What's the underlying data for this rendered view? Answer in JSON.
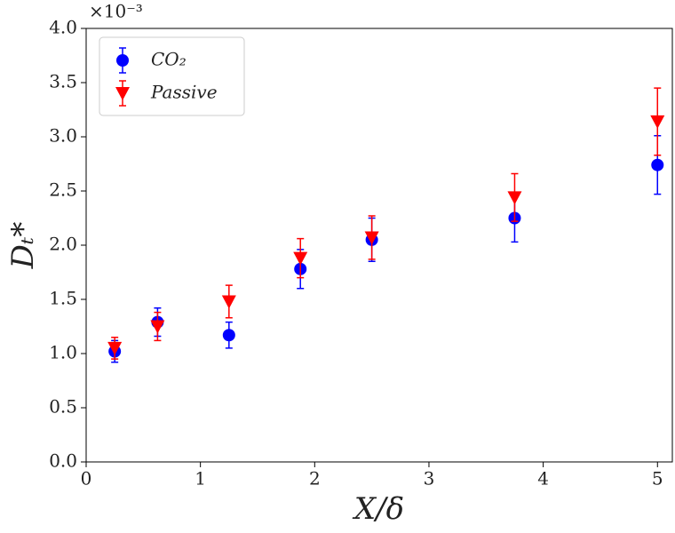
{
  "chart_data": {
    "type": "scatter",
    "xlabel": "X/δ",
    "ylabel": "Dₜ*",
    "y_offset_label": "×10⁻³",
    "x": [
      0.25,
      0.625,
      1.25,
      1.875,
      2.5,
      3.75,
      5
    ],
    "series": [
      {
        "name": "CO₂",
        "color": "#0000ff",
        "marker": "circle",
        "values": [
          1.02,
          1.29,
          1.17,
          1.78,
          2.05,
          2.25,
          2.74
        ],
        "errors": [
          0.1,
          0.13,
          0.12,
          0.18,
          0.2,
          0.22,
          0.27
        ]
      },
      {
        "name": "Passive",
        "color": "#ff0000",
        "marker": "triangle-down",
        "values": [
          1.05,
          1.25,
          1.48,
          1.88,
          2.07,
          2.44,
          3.14
        ],
        "errors": [
          0.1,
          0.13,
          0.15,
          0.18,
          0.2,
          0.22,
          0.31
        ]
      }
    ],
    "xlim": [
      0,
      5.13
    ],
    "xticks": [
      0,
      1,
      2,
      3,
      4,
      5
    ],
    "ylim": [
      0,
      4
    ],
    "yticks": [
      {
        "value": 0,
        "label": "0.0"
      },
      0.5,
      {
        "value": 1,
        "label": "1.0"
      },
      1.5,
      {
        "value": 2,
        "label": "2.0"
      },
      2.5,
      {
        "value": 3,
        "label": "3.0"
      },
      3.5,
      {
        "value": 4,
        "label": "4.0"
      }
    ],
    "grid": false,
    "legend": "upper left"
  }
}
